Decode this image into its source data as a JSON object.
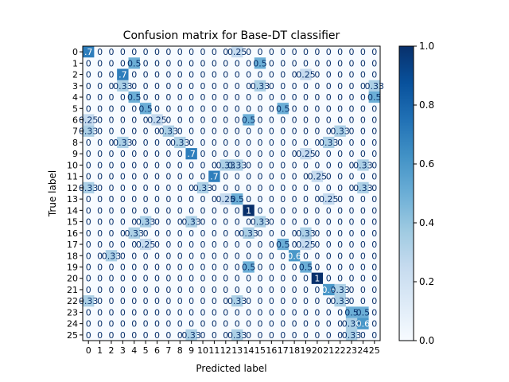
{
  "chart_data": {
    "type": "heatmap",
    "title": "Confusion matrix for Base-DT classifier",
    "xlabel": "Predicted label",
    "ylabel": "True label",
    "x_categories": [
      "0",
      "1",
      "2",
      "3",
      "4",
      "5",
      "6",
      "7",
      "8",
      "9",
      "10",
      "11",
      "12",
      "13",
      "14",
      "15",
      "16",
      "17",
      "18",
      "19",
      "20",
      "21",
      "22",
      "23",
      "24",
      "25"
    ],
    "y_categories": [
      "0",
      "1",
      "2",
      "3",
      "4",
      "5",
      "6",
      "7",
      "8",
      "9",
      "10",
      "11",
      "12",
      "13",
      "14",
      "15",
      "16",
      "17",
      "18",
      "19",
      "20",
      "21",
      "22",
      "23",
      "24",
      "25"
    ],
    "value_range": [
      0.0,
      1.0
    ],
    "colormap": "Blues",
    "colorbar_ticks": [
      "0.0",
      "0.2",
      "0.4",
      "0.6",
      "0.8",
      "1.0"
    ],
    "colors": {
      "low": "#f7fbff",
      "high": "#08306b"
    },
    "nonzero_cells": [
      {
        "row": 0,
        "col": 0,
        "label": ".7"
      },
      {
        "row": 0,
        "col": 13,
        "label": "0.25"
      },
      {
        "row": 1,
        "col": 4,
        "label": "0.5"
      },
      {
        "row": 1,
        "col": 15,
        "label": "0.5"
      },
      {
        "row": 2,
        "col": 3,
        "label": ".7"
      },
      {
        "row": 2,
        "col": 19,
        "label": "0.25"
      },
      {
        "row": 3,
        "col": 3,
        "label": "0.33"
      },
      {
        "row": 3,
        "col": 15,
        "label": "0.33"
      },
      {
        "row": 3,
        "col": 25,
        "label": "0.33"
      },
      {
        "row": 4,
        "col": 4,
        "label": "0.5"
      },
      {
        "row": 4,
        "col": 25,
        "label": "0.5"
      },
      {
        "row": 5,
        "col": 5,
        "label": "0.5"
      },
      {
        "row": 5,
        "col": 17,
        "label": "0.5"
      },
      {
        "row": 6,
        "col": 0,
        "label": "0.25"
      },
      {
        "row": 6,
        "col": 6,
        "label": "0.25"
      },
      {
        "row": 6,
        "col": 14,
        "label": "0.5"
      },
      {
        "row": 7,
        "col": 0,
        "label": "0.33"
      },
      {
        "row": 7,
        "col": 7,
        "label": "0.33"
      },
      {
        "row": 7,
        "col": 22,
        "label": "0.33"
      },
      {
        "row": 8,
        "col": 3,
        "label": "0.33"
      },
      {
        "row": 8,
        "col": 8,
        "label": "0.33"
      },
      {
        "row": 8,
        "col": 21,
        "label": "0.33"
      },
      {
        "row": 9,
        "col": 9,
        "label": ".7"
      },
      {
        "row": 9,
        "col": 19,
        "label": "0.25"
      },
      {
        "row": 10,
        "col": 12,
        "label": "0.33"
      },
      {
        "row": 10,
        "col": 13,
        "label": "0.33"
      },
      {
        "row": 10,
        "col": 24,
        "label": "0.33"
      },
      {
        "row": 11,
        "col": 11,
        "label": ".7"
      },
      {
        "row": 11,
        "col": 20,
        "label": "0.25"
      },
      {
        "row": 12,
        "col": 0,
        "label": "0.33"
      },
      {
        "row": 12,
        "col": 10,
        "label": "0.33"
      },
      {
        "row": 12,
        "col": 24,
        "label": "0.33"
      },
      {
        "row": 13,
        "col": 12,
        "label": "0.25"
      },
      {
        "row": 13,
        "col": 13,
        "label": "0.5"
      },
      {
        "row": 13,
        "col": 21,
        "label": "0.25"
      },
      {
        "row": 14,
        "col": 14,
        "label": "1"
      },
      {
        "row": 15,
        "col": 5,
        "label": "0.33"
      },
      {
        "row": 15,
        "col": 9,
        "label": "0.33"
      },
      {
        "row": 15,
        "col": 15,
        "label": "0.33"
      },
      {
        "row": 16,
        "col": 4,
        "label": "0.33"
      },
      {
        "row": 16,
        "col": 14,
        "label": "0.33"
      },
      {
        "row": 16,
        "col": 19,
        "label": "0.33"
      },
      {
        "row": 17,
        "col": 5,
        "label": "0.25"
      },
      {
        "row": 17,
        "col": 17,
        "label": "0.5"
      },
      {
        "row": 17,
        "col": 19,
        "label": "0.25"
      },
      {
        "row": 18,
        "col": 2,
        "label": "0.33"
      },
      {
        "row": 18,
        "col": 18,
        "label": "0.6"
      },
      {
        "row": 19,
        "col": 14,
        "label": "0.5"
      },
      {
        "row": 19,
        "col": 19,
        "label": "0.5"
      },
      {
        "row": 20,
        "col": 20,
        "label": "1"
      },
      {
        "row": 21,
        "col": 21,
        "label": "0.6"
      },
      {
        "row": 21,
        "col": 22,
        "label": "0.33"
      },
      {
        "row": 22,
        "col": 0,
        "label": "0.33"
      },
      {
        "row": 22,
        "col": 13,
        "label": "0.33"
      },
      {
        "row": 22,
        "col": 22,
        "label": "0.33"
      },
      {
        "row": 23,
        "col": 23,
        "label": "0.5"
      },
      {
        "row": 23,
        "col": 24,
        "label": "0.5"
      },
      {
        "row": 24,
        "col": 23,
        "label": "0.33"
      },
      {
        "row": 24,
        "col": 24,
        "label": "0.6"
      },
      {
        "row": 25,
        "col": 9,
        "label": "0.33"
      },
      {
        "row": 25,
        "col": 13,
        "label": "0.33"
      },
      {
        "row": 25,
        "col": 23,
        "label": "0.33"
      }
    ],
    "default_cell_label": "0"
  }
}
